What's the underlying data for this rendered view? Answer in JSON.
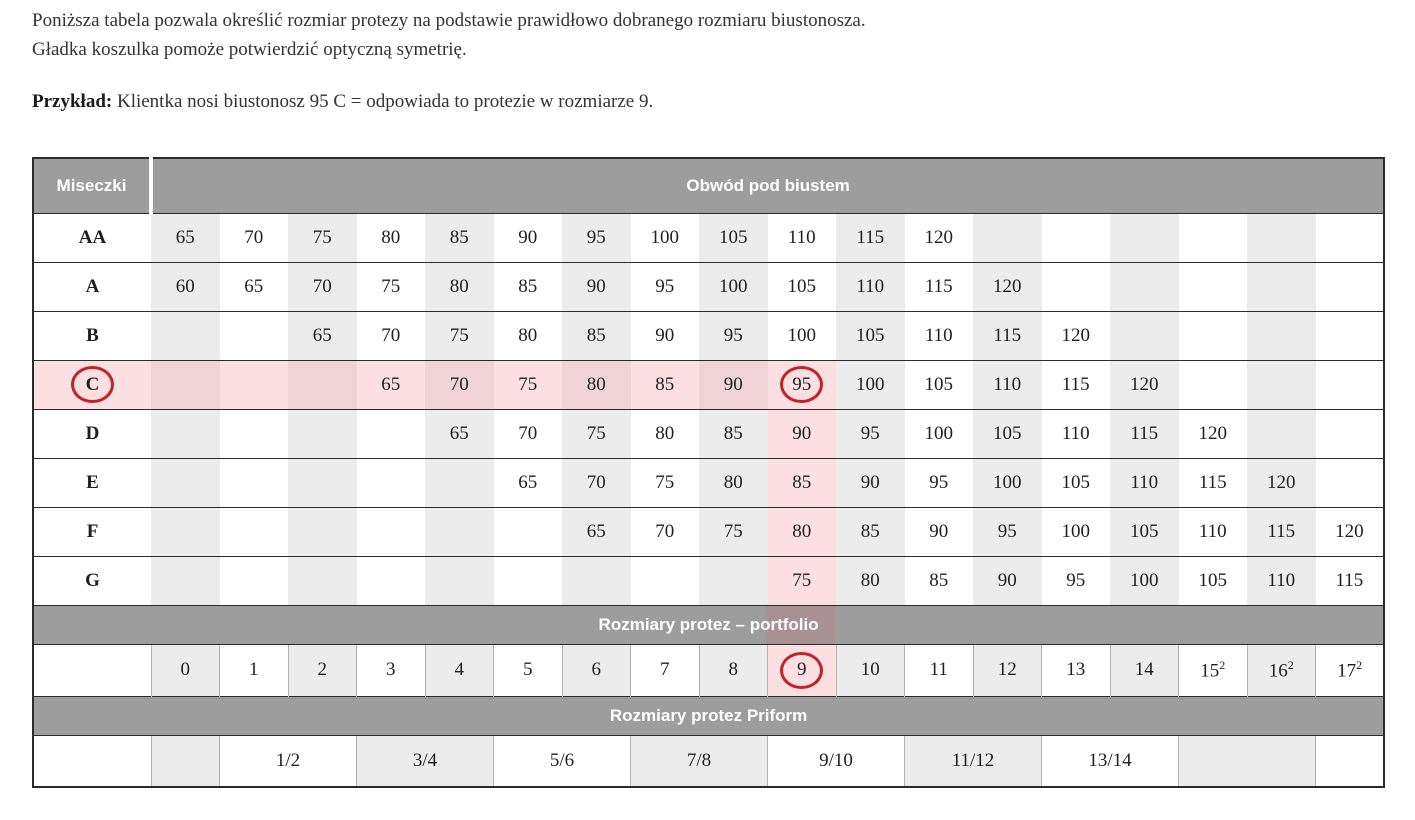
{
  "intro": {
    "line1": "Poniższa tabela pozwala określić rozmiar protezy na podstawie prawidłowo dobranego rozmiaru biustonosza.",
    "line2": "Gładka koszulka pomoże potwierdzić optyczną symetrię.",
    "example_label": "Przykład:",
    "example_text": " Klientka nosi biustonosz 95 C = odpowiada to protezie w rozmiarze 9."
  },
  "table": {
    "corner_header": "Miseczki",
    "band_header": "Obwód pod biustem",
    "portfolio_band": "Rozmiary protez – portfolio",
    "priform_band": "Rozmiary protez Priform",
    "num_columns": 18,
    "highlight_column": 10,
    "cup_rows": [
      {
        "cup": "AA",
        "start": 1,
        "values": [
          65,
          70,
          75,
          80,
          85,
          90,
          95,
          100,
          105,
          110,
          115,
          120
        ]
      },
      {
        "cup": "A",
        "start": 1,
        "values": [
          60,
          65,
          70,
          75,
          80,
          85,
          90,
          95,
          100,
          105,
          110,
          115,
          120
        ]
      },
      {
        "cup": "B",
        "start": 3,
        "values": [
          65,
          70,
          75,
          80,
          85,
          90,
          95,
          100,
          105,
          110,
          115,
          120
        ]
      },
      {
        "cup": "C",
        "start": 4,
        "values": [
          65,
          70,
          75,
          80,
          85,
          90,
          95,
          100,
          105,
          110,
          115,
          120
        ],
        "highlighted": true,
        "circled_cup": true,
        "circled_value": 95
      },
      {
        "cup": "D",
        "start": 5,
        "values": [
          65,
          70,
          75,
          80,
          85,
          90,
          95,
          100,
          105,
          110,
          115,
          120
        ]
      },
      {
        "cup": "E",
        "start": 6,
        "values": [
          65,
          70,
          75,
          80,
          85,
          90,
          95,
          100,
          105,
          110,
          115,
          120
        ]
      },
      {
        "cup": "F",
        "start": 7,
        "values": [
          65,
          70,
          75,
          80,
          85,
          90,
          95,
          100,
          105,
          110,
          115,
          120
        ]
      },
      {
        "cup": "G",
        "start": 10,
        "values": [
          75,
          80,
          85,
          90,
          95,
          100,
          105,
          110,
          115
        ]
      }
    ],
    "portfolio_sizes": [
      "0",
      "1",
      "2",
      "3",
      "4",
      "5",
      "6",
      "7",
      "8",
      "9",
      "10",
      "11",
      "12",
      "13",
      "14",
      "15²",
      "16²",
      "17²"
    ],
    "circled_size": "9",
    "priform_cells": [
      {
        "label": "",
        "span": 1,
        "shade": "gray"
      },
      {
        "label": "1/2",
        "span": 2,
        "shade": "white"
      },
      {
        "label": "3/4",
        "span": 2,
        "shade": "gray"
      },
      {
        "label": "5/6",
        "span": 2,
        "shade": "white"
      },
      {
        "label": "7/8",
        "span": 2,
        "shade": "gray"
      },
      {
        "label": "9/10",
        "span": 2,
        "shade": "white"
      },
      {
        "label": "11/12",
        "span": 2,
        "shade": "gray"
      },
      {
        "label": "13/14",
        "span": 2,
        "shade": "white"
      },
      {
        "label": "",
        "span": 2,
        "shade": "gray"
      },
      {
        "label": "",
        "span": 1,
        "shade": "white"
      }
    ],
    "colors": {
      "band_gray": "#9d9d9d",
      "stripe_gray": "#ececec",
      "pink_light": "#fbdfe1",
      "pink_dark": "#f0d3d6",
      "pink_on_band": "#a99193",
      "circle_red": "#c2222a",
      "row_line": "#2b2b2b"
    }
  }
}
